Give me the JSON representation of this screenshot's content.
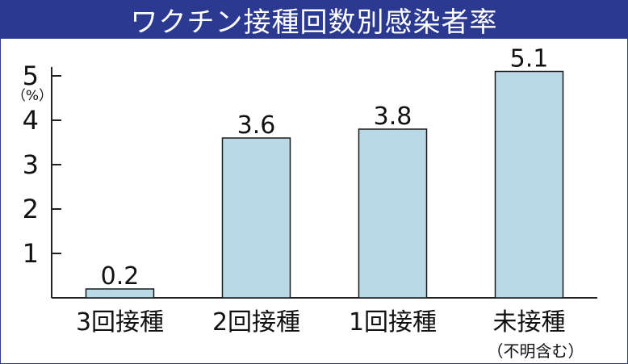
{
  "title": "ワクチン接種回数別感染者率",
  "chart_data": {
    "type": "bar",
    "title": "ワクチン接種回数別感染者率",
    "categories": [
      "3回接種",
      "2回接種",
      "1回接種",
      "未接種"
    ],
    "category_notes": [
      "",
      "",
      "",
      "（不明含む）"
    ],
    "values": [
      0.2,
      3.6,
      3.8,
      5.1
    ],
    "value_labels": [
      "0.2",
      "3.6",
      "3.8",
      "5.1"
    ],
    "ylabel": "（%）",
    "ylim": [
      0,
      5.2
    ],
    "yticks": [
      1,
      2,
      3,
      4,
      5
    ],
    "grid": false,
    "bar_color": "#b9d9e7",
    "bar_stroke": "#1a1a1a"
  }
}
